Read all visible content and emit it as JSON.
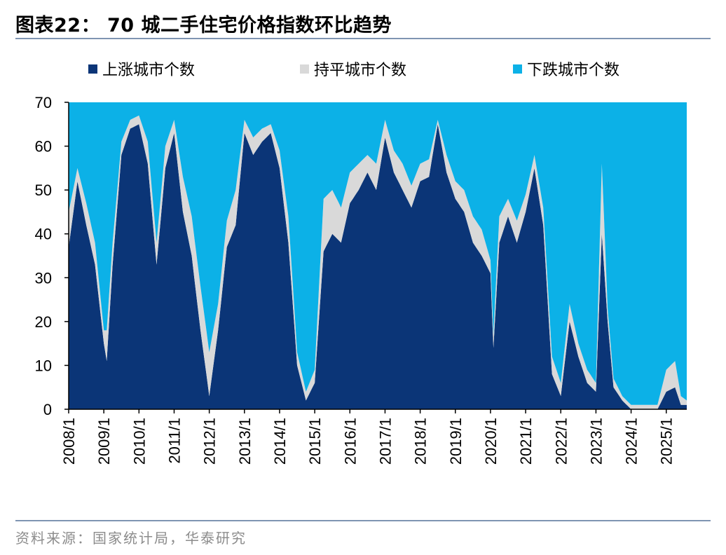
{
  "title": "图表22：  70 城二手住宅价格指数环比趋势",
  "source": "资料来源：国家统计局，华泰研究",
  "colors": {
    "up": "#0b3577",
    "flat": "#d9d9d9",
    "down": "#0cb1e7",
    "rule": "#7f95b2"
  },
  "chart_data": {
    "type": "area",
    "stacked": true,
    "title": "",
    "xlabel": "",
    "ylabel": "",
    "ylim": [
      0,
      70
    ],
    "yticks": [
      "0",
      "10",
      "20",
      "30",
      "40",
      "50",
      "60",
      "70"
    ],
    "xticks": [
      "2008/1",
      "2009/1",
      "2010/1",
      "2011/1",
      "2012/1",
      "2013/1",
      "2014/1",
      "2015/1",
      "2016/1",
      "2017/1",
      "2018/1",
      "2019/1",
      "2020/1",
      "2021/1",
      "2022/1",
      "2023/1",
      "2024/1",
      "2025/1"
    ],
    "grid": false,
    "legend_position": "top",
    "x_range": [
      "2008/1",
      "2025/8"
    ],
    "series": [
      {
        "name": "上涨城市个数",
        "color": "#0b3577",
        "points": [
          [
            "2008/1",
            37
          ],
          [
            "2008/4",
            52
          ],
          [
            "2008/7",
            42
          ],
          [
            "2008/10",
            33
          ],
          [
            "2009/1",
            15
          ],
          [
            "2009/2",
            11
          ],
          [
            "2009/4",
            33
          ],
          [
            "2009/7",
            58
          ],
          [
            "2009/10",
            64
          ],
          [
            "2010/1",
            65
          ],
          [
            "2010/4",
            56
          ],
          [
            "2010/7",
            33
          ],
          [
            "2010/10",
            55
          ],
          [
            "2011/1",
            63
          ],
          [
            "2011/4",
            45
          ],
          [
            "2011/7",
            35
          ],
          [
            "2011/10",
            18
          ],
          [
            "2012/1",
            3
          ],
          [
            "2012/4",
            18
          ],
          [
            "2012/7",
            37
          ],
          [
            "2012/10",
            42
          ],
          [
            "2013/1",
            63
          ],
          [
            "2013/4",
            58
          ],
          [
            "2013/7",
            61
          ],
          [
            "2013/10",
            63
          ],
          [
            "2014/1",
            55
          ],
          [
            "2014/4",
            38
          ],
          [
            "2014/7",
            10
          ],
          [
            "2014/10",
            2
          ],
          [
            "2015/1",
            6
          ],
          [
            "2015/4",
            36
          ],
          [
            "2015/7",
            40
          ],
          [
            "2015/10",
            38
          ],
          [
            "2016/1",
            47
          ],
          [
            "2016/4",
            50
          ],
          [
            "2016/7",
            54
          ],
          [
            "2016/10",
            50
          ],
          [
            "2017/1",
            62
          ],
          [
            "2017/4",
            54
          ],
          [
            "2017/7",
            50
          ],
          [
            "2017/10",
            46
          ],
          [
            "2018/1",
            52
          ],
          [
            "2018/4",
            53
          ],
          [
            "2018/7",
            65
          ],
          [
            "2018/10",
            54
          ],
          [
            "2019/1",
            48
          ],
          [
            "2019/4",
            45
          ],
          [
            "2019/7",
            38
          ],
          [
            "2019/10",
            35
          ],
          [
            "2020/1",
            31
          ],
          [
            "2020/2",
            14
          ],
          [
            "2020/4",
            38
          ],
          [
            "2020/7",
            44
          ],
          [
            "2020/10",
            38
          ],
          [
            "2021/1",
            45
          ],
          [
            "2021/4",
            55
          ],
          [
            "2021/7",
            42
          ],
          [
            "2021/10",
            8
          ],
          [
            "2022/1",
            3
          ],
          [
            "2022/4",
            20
          ],
          [
            "2022/7",
            12
          ],
          [
            "2022/10",
            6
          ],
          [
            "2023/1",
            4
          ],
          [
            "2023/3",
            40
          ],
          [
            "2023/5",
            20
          ],
          [
            "2023/7",
            5
          ],
          [
            "2023/10",
            2
          ],
          [
            "2024/1",
            0
          ],
          [
            "2024/4",
            0
          ],
          [
            "2024/7",
            0
          ],
          [
            "2024/10",
            0
          ],
          [
            "2025/1",
            4
          ],
          [
            "2025/4",
            5
          ],
          [
            "2025/6",
            1
          ],
          [
            "2025/8",
            1
          ]
        ]
      },
      {
        "name": "持平城市个数",
        "color": "#d9d9d9",
        "points": [
          [
            "2008/1",
            8
          ],
          [
            "2008/4",
            3
          ],
          [
            "2008/7",
            5
          ],
          [
            "2008/10",
            5
          ],
          [
            "2009/1",
            3
          ],
          [
            "2009/2",
            7
          ],
          [
            "2009/4",
            5
          ],
          [
            "2009/7",
            3
          ],
          [
            "2009/10",
            2
          ],
          [
            "2010/1",
            2
          ],
          [
            "2010/4",
            5
          ],
          [
            "2010/7",
            5
          ],
          [
            "2010/10",
            5
          ],
          [
            "2011/1",
            3
          ],
          [
            "2011/4",
            8
          ],
          [
            "2011/7",
            9
          ],
          [
            "2011/10",
            10
          ],
          [
            "2012/1",
            10
          ],
          [
            "2012/4",
            6
          ],
          [
            "2012/7",
            6
          ],
          [
            "2012/10",
            8
          ],
          [
            "2013/1",
            3
          ],
          [
            "2013/4",
            4
          ],
          [
            "2013/7",
            3
          ],
          [
            "2013/10",
            2
          ],
          [
            "2014/1",
            4
          ],
          [
            "2014/4",
            6
          ],
          [
            "2014/7",
            3
          ],
          [
            "2014/10",
            2
          ],
          [
            "2015/1",
            3
          ],
          [
            "2015/4",
            12
          ],
          [
            "2015/7",
            10
          ],
          [
            "2015/10",
            8
          ],
          [
            "2016/1",
            7
          ],
          [
            "2016/4",
            6
          ],
          [
            "2016/7",
            4
          ],
          [
            "2016/10",
            6
          ],
          [
            "2017/1",
            4
          ],
          [
            "2017/4",
            5
          ],
          [
            "2017/7",
            6
          ],
          [
            "2017/10",
            5
          ],
          [
            "2018/1",
            4
          ],
          [
            "2018/4",
            4
          ],
          [
            "2018/7",
            1
          ],
          [
            "2018/10",
            4
          ],
          [
            "2019/1",
            4
          ],
          [
            "2019/4",
            5
          ],
          [
            "2019/7",
            6
          ],
          [
            "2019/10",
            6
          ],
          [
            "2020/1",
            3
          ],
          [
            "2020/2",
            3
          ],
          [
            "2020/4",
            6
          ],
          [
            "2020/7",
            4
          ],
          [
            "2020/10",
            5
          ],
          [
            "2021/1",
            4
          ],
          [
            "2021/4",
            3
          ],
          [
            "2021/7",
            4
          ],
          [
            "2021/10",
            4
          ],
          [
            "2022/1",
            3
          ],
          [
            "2022/4",
            4
          ],
          [
            "2022/7",
            3
          ],
          [
            "2022/10",
            3
          ],
          [
            "2023/1",
            2
          ],
          [
            "2023/3",
            16
          ],
          [
            "2023/5",
            3
          ],
          [
            "2023/7",
            2
          ],
          [
            "2023/10",
            1
          ],
          [
            "2024/1",
            1
          ],
          [
            "2024/4",
            1
          ],
          [
            "2024/7",
            1
          ],
          [
            "2024/10",
            1
          ],
          [
            "2025/1",
            5
          ],
          [
            "2025/4",
            6
          ],
          [
            "2025/6",
            2
          ],
          [
            "2025/8",
            1
          ]
        ]
      },
      {
        "name": "下跌城市个数",
        "color": "#0cb1e7",
        "points": [
          [
            "2008/1",
            25
          ],
          [
            "2008/4",
            15
          ],
          [
            "2008/7",
            23
          ],
          [
            "2008/10",
            32
          ],
          [
            "2009/1",
            52
          ],
          [
            "2009/2",
            52
          ],
          [
            "2009/4",
            32
          ],
          [
            "2009/7",
            9
          ],
          [
            "2009/10",
            4
          ],
          [
            "2010/1",
            3
          ],
          [
            "2010/4",
            9
          ],
          [
            "2010/7",
            32
          ],
          [
            "2010/10",
            10
          ],
          [
            "2011/1",
            4
          ],
          [
            "2011/4",
            17
          ],
          [
            "2011/7",
            26
          ],
          [
            "2011/10",
            42
          ],
          [
            "2012/1",
            57
          ],
          [
            "2012/4",
            46
          ],
          [
            "2012/7",
            27
          ],
          [
            "2012/10",
            20
          ],
          [
            "2013/1",
            4
          ],
          [
            "2013/4",
            8
          ],
          [
            "2013/7",
            6
          ],
          [
            "2013/10",
            5
          ],
          [
            "2014/1",
            11
          ],
          [
            "2014/4",
            26
          ],
          [
            "2014/7",
            57
          ],
          [
            "2014/10",
            66
          ],
          [
            "2015/1",
            61
          ],
          [
            "2015/4",
            22
          ],
          [
            "2015/7",
            20
          ],
          [
            "2015/10",
            24
          ],
          [
            "2016/1",
            16
          ],
          [
            "2016/4",
            14
          ],
          [
            "2016/7",
            12
          ],
          [
            "2016/10",
            14
          ],
          [
            "2017/1",
            4
          ],
          [
            "2017/4",
            11
          ],
          [
            "2017/7",
            14
          ],
          [
            "2017/10",
            19
          ],
          [
            "2018/1",
            14
          ],
          [
            "2018/4",
            13
          ],
          [
            "2018/7",
            4
          ],
          [
            "2018/10",
            12
          ],
          [
            "2019/1",
            18
          ],
          [
            "2019/4",
            20
          ],
          [
            "2019/7",
            26
          ],
          [
            "2019/10",
            29
          ],
          [
            "2020/1",
            36
          ],
          [
            "2020/2",
            53
          ],
          [
            "2020/4",
            26
          ],
          [
            "2020/7",
            22
          ],
          [
            "2020/10",
            27
          ],
          [
            "2021/1",
            21
          ],
          [
            "2021/4",
            12
          ],
          [
            "2021/7",
            24
          ],
          [
            "2021/10",
            58
          ],
          [
            "2022/1",
            64
          ],
          [
            "2022/4",
            46
          ],
          [
            "2022/7",
            55
          ],
          [
            "2022/10",
            61
          ],
          [
            "2023/1",
            64
          ],
          [
            "2023/3",
            14
          ],
          [
            "2023/5",
            47
          ],
          [
            "2023/7",
            63
          ],
          [
            "2023/10",
            67
          ],
          [
            "2024/1",
            69
          ],
          [
            "2024/4",
            69
          ],
          [
            "2024/7",
            69
          ],
          [
            "2024/10",
            69
          ],
          [
            "2025/1",
            61
          ],
          [
            "2025/4",
            59
          ],
          [
            "2025/6",
            67
          ],
          [
            "2025/8",
            68
          ]
        ]
      }
    ]
  }
}
